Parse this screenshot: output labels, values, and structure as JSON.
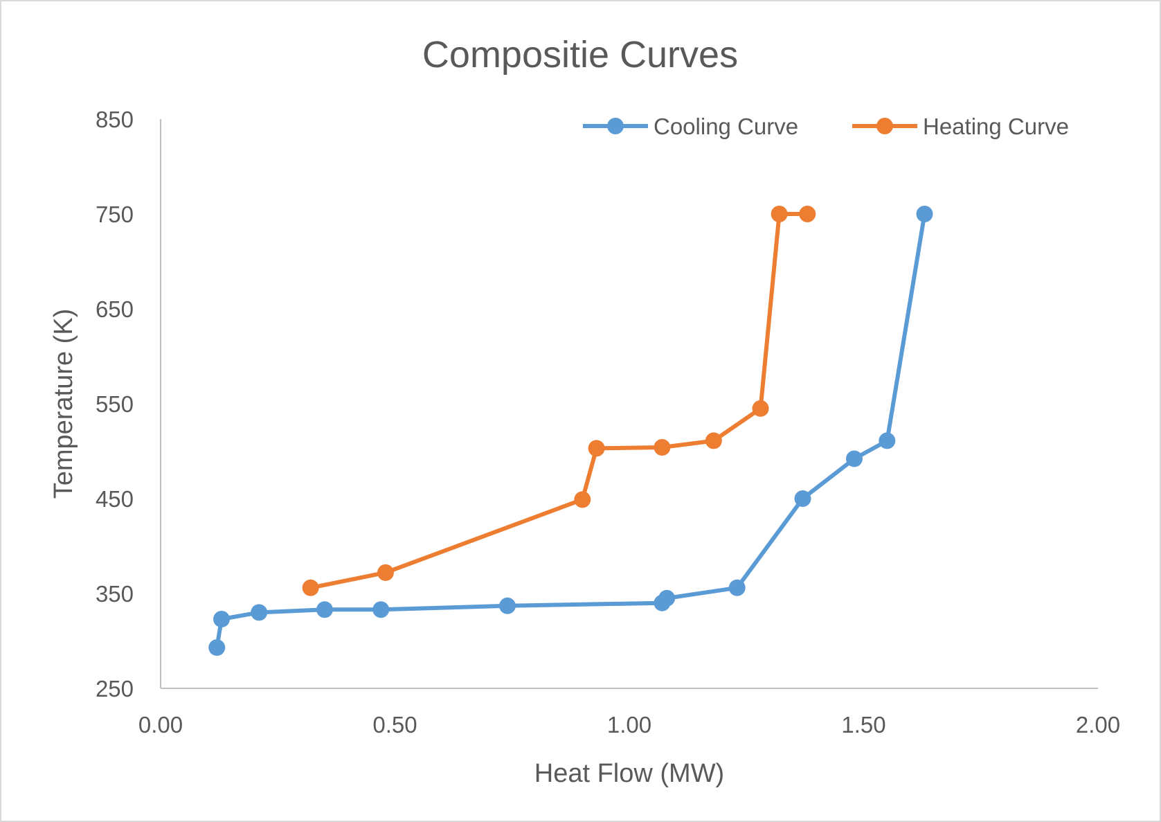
{
  "chart_data": {
    "type": "scatter",
    "title": "Compositie Curves",
    "xlabel": "Heat Flow (MW)",
    "ylabel": "Temperature (K)",
    "xlim": [
      0,
      2
    ],
    "ylim": [
      250,
      850
    ],
    "x_ticks": [
      "0.00",
      "0.50",
      "1.00",
      "1.50",
      "2.00"
    ],
    "x_tick_values": [
      0,
      0.5,
      1,
      1.5,
      2
    ],
    "y_ticks": [
      "250",
      "350",
      "450",
      "550",
      "650",
      "750",
      "850"
    ],
    "y_tick_values": [
      250,
      350,
      450,
      550,
      650,
      750,
      850
    ],
    "grid": false,
    "legend_position": "top-right",
    "series": [
      {
        "name": "Cooling Curve",
        "color": "#5B9BD5",
        "x": [
          0.12,
          0.13,
          0.21,
          0.35,
          0.47,
          0.74,
          1.07,
          1.08,
          1.23,
          1.37,
          1.48,
          1.55,
          1.63
        ],
        "y": [
          293,
          323,
          330,
          333,
          333,
          337,
          340,
          345,
          356,
          450,
          492,
          511,
          750
        ]
      },
      {
        "name": "Heating Curve",
        "color": "#ED7D31",
        "x": [
          0.32,
          0.48,
          0.9,
          0.93,
          1.07,
          1.18,
          1.28,
          1.32,
          1.38
        ],
        "y": [
          356,
          372,
          449,
          503,
          504,
          511,
          545,
          750,
          750
        ]
      }
    ]
  }
}
